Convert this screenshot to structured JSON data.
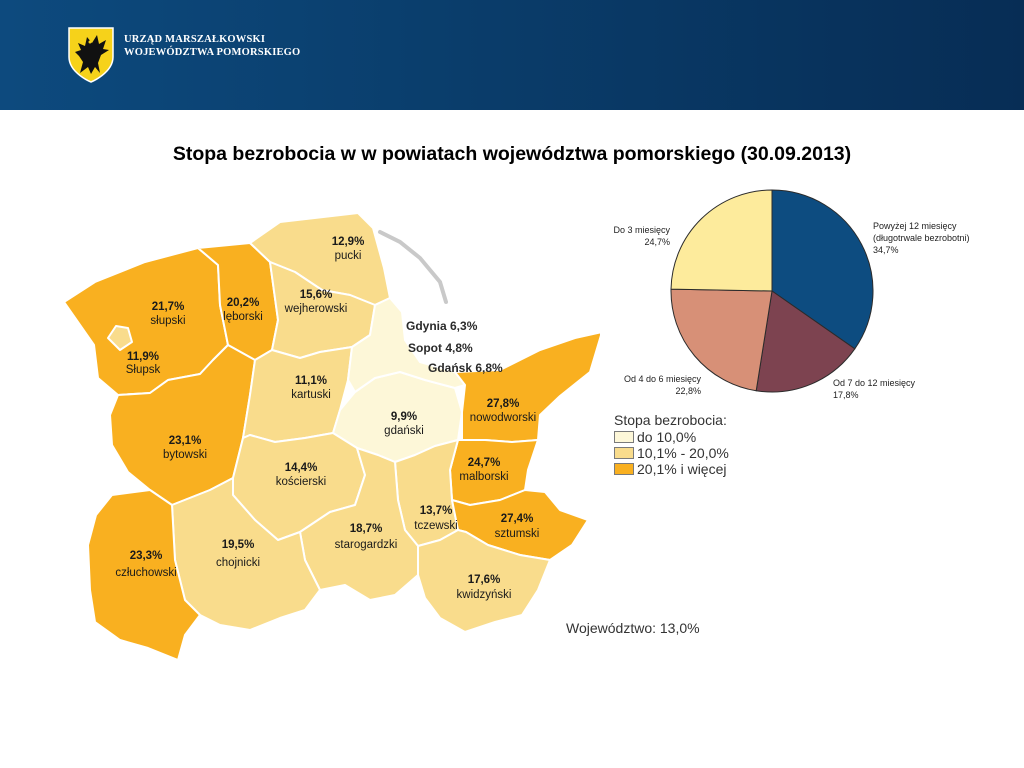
{
  "header": {
    "org_line1": "URZĄD MARSZAŁKOWSKI",
    "org_line2": "WOJEWÓDZTWA POMORSKIEGO",
    "crest_icon": "griffin-crest-icon"
  },
  "title": "Stopa bezrobocia w w powiatach województwa pomorskiego (30.09.2013)",
  "map": {
    "regions": [
      {
        "key": "slupski",
        "pct": "21,7%",
        "name": "słupski"
      },
      {
        "key": "slupsk",
        "pct": "11,9%",
        "name": "Słupsk"
      },
      {
        "key": "leborski",
        "pct": "20,2%",
        "name": "lęborski"
      },
      {
        "key": "pucki",
        "pct": "12,9%",
        "name": "pucki"
      },
      {
        "key": "wejherowski",
        "pct": "15,6%",
        "name": "wejherowski"
      },
      {
        "key": "kartuski",
        "pct": "11,1%",
        "name": "kartuski"
      },
      {
        "key": "bytowski",
        "pct": "23,1%",
        "name": "bytowski"
      },
      {
        "key": "gdanski",
        "pct": "9,9%",
        "name": "gdański"
      },
      {
        "key": "nowodworski",
        "pct": "27,8%",
        "name": "nowodworski"
      },
      {
        "key": "koscierski",
        "pct": "14,4%",
        "name": "kościerski"
      },
      {
        "key": "malborski",
        "pct": "24,7%",
        "name": "malborski"
      },
      {
        "key": "czluchowski",
        "pct": "23,3%",
        "name": "człuchowski"
      },
      {
        "key": "chojnicki",
        "pct": "19,5%",
        "name": "chojnicki"
      },
      {
        "key": "starogardzki",
        "pct": "18,7%",
        "name": "starogardzki"
      },
      {
        "key": "tczewski",
        "pct": "13,7%",
        "name": "tczewski"
      },
      {
        "key": "sztumski",
        "pct": "27,4%",
        "name": "sztumski"
      },
      {
        "key": "kwidzynski",
        "pct": "17,6%",
        "name": "kwidzyński"
      }
    ],
    "cities": {
      "gdynia": "Gdynia 6,3%",
      "sopot": "Sopot 4,8%",
      "gdansk": "Gdańsk 6,8%"
    },
    "colors": {
      "low": "#fdf7d8",
      "mid": "#f9dc8c",
      "high": "#f9b020"
    }
  },
  "legend": {
    "title": "Stopa bezrobocia:",
    "items": [
      {
        "label": "do 10,0%",
        "color": "#fdf7d8"
      },
      {
        "label": "10,1% - 20,0%",
        "color": "#f9dc8c"
      },
      {
        "label": "20,1% i więcej",
        "color": "#f9b020"
      }
    ]
  },
  "wojewodztwo": "Województwo: 13,0%",
  "chart_data": {
    "type": "pie",
    "slices": [
      {
        "label": "Powyżej 12 miesięcy",
        "label2": "(długotrwale bezrobotni)",
        "value_label": "34,7%",
        "value": 34.7,
        "color": "#0d4c80"
      },
      {
        "label": "Od 7 do 12 miesięcy",
        "label2": "",
        "value_label": "17,8%",
        "value": 17.8,
        "color": "#7d4350"
      },
      {
        "label": "Od 4 do 6 miesięcy",
        "label2": "",
        "value_label": "22,8%",
        "value": 22.8,
        "color": "#d79077"
      },
      {
        "label": "Do 3 miesięcy",
        "label2": "",
        "value_label": "24,7%",
        "value": 24.7,
        "color": "#fdeb9c"
      }
    ]
  }
}
